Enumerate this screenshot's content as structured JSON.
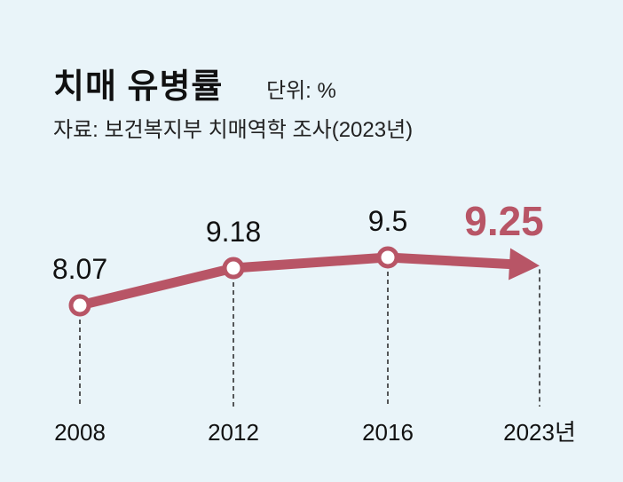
{
  "header": {
    "title": "치매 유병률",
    "unit": "단위: %",
    "source": "자료: 보건복지부 치매역학 조사(2023년)"
  },
  "colors": {
    "line": "#b85566",
    "background": "#e9f4f9",
    "text": "#111111"
  },
  "chart_data": {
    "type": "line",
    "title": "치매 유병률",
    "ylabel": "%",
    "categories": [
      "2008",
      "2012",
      "2016",
      "2023년"
    ],
    "values": [
      8.07,
      9.18,
      9.5,
      9.25
    ],
    "labels": [
      "8.07",
      "9.18",
      "9.5",
      "9.25"
    ],
    "highlight_last": true,
    "grid": false
  }
}
